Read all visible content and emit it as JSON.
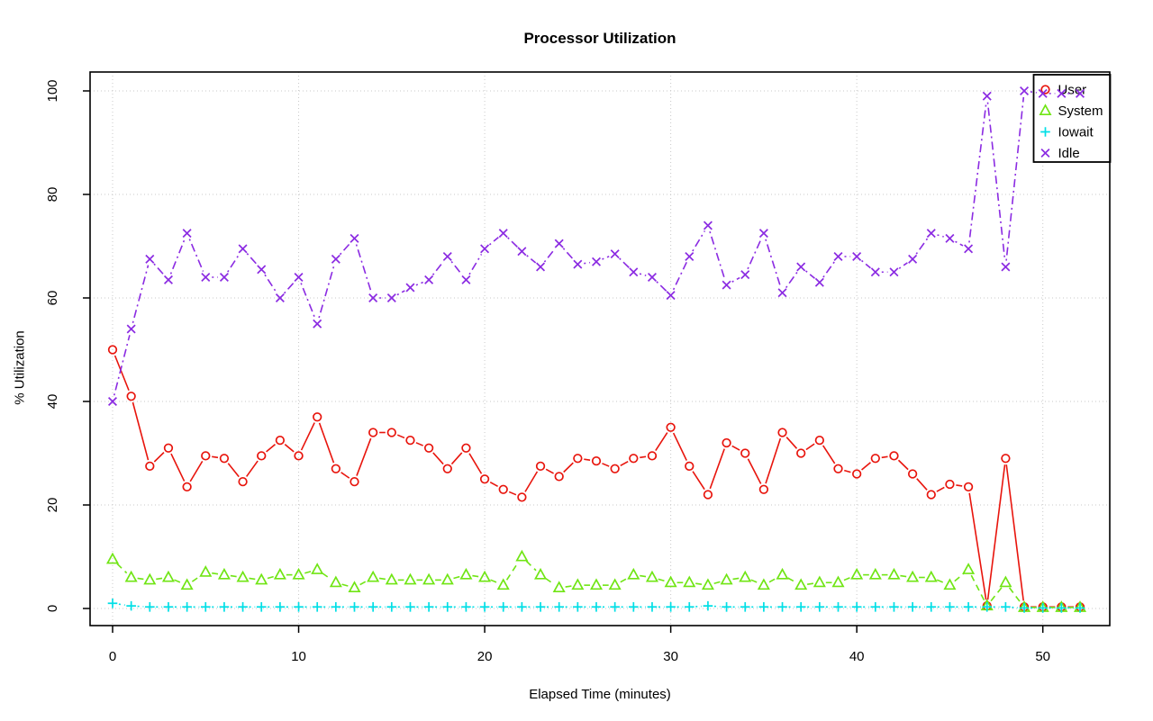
{
  "title": "Processor Utilization",
  "chart_data": {
    "type": "line",
    "title": "Processor Utilization",
    "xlabel": "Elapsed Time (minutes)",
    "ylabel": "% Utilization",
    "x": [
      0,
      1,
      2,
      3,
      4,
      5,
      6,
      7,
      8,
      9,
      10,
      11,
      12,
      13,
      14,
      15,
      16,
      17,
      18,
      19,
      20,
      21,
      22,
      23,
      24,
      25,
      26,
      27,
      28,
      29,
      30,
      31,
      32,
      33,
      34,
      35,
      36,
      37,
      38,
      39,
      40,
      41,
      42,
      43,
      44,
      45,
      46,
      47,
      48,
      49,
      50,
      51,
      52
    ],
    "xticks": [
      0,
      10,
      20,
      30,
      40,
      50
    ],
    "yticks": [
      0,
      20,
      40,
      60,
      80,
      100
    ],
    "xlim": [
      -1.2,
      53.6
    ],
    "ylim": [
      -3.3,
      103.7
    ],
    "grid": true,
    "grid_color": "#c9c9c9",
    "legend_position": "top-right",
    "series": [
      {
        "name": "User",
        "color": "#e8140c",
        "marker": "circle",
        "linestyle": "solid",
        "values": [
          50,
          41,
          27.5,
          31,
          23.5,
          29.5,
          29,
          24.5,
          29.5,
          32.5,
          29.5,
          37,
          27,
          24.5,
          34,
          34,
          32.5,
          31,
          27,
          31,
          25,
          23,
          21.5,
          27.5,
          25.5,
          29,
          28.5,
          27,
          29,
          29.5,
          35,
          27.5,
          22,
          32,
          30,
          23,
          34,
          30,
          32.5,
          27,
          26,
          29,
          29.5,
          26,
          22,
          24,
          23.5,
          0.5,
          29,
          0.3,
          0.3,
          0.3,
          0.3
        ]
      },
      {
        "name": "System",
        "color": "#70e514",
        "marker": "triangle",
        "linestyle": "dashed",
        "values": [
          9.5,
          6,
          5.5,
          6,
          4.5,
          7,
          6.5,
          6,
          5.5,
          6.5,
          6.5,
          7.5,
          5,
          4,
          6,
          5.5,
          5.5,
          5.5,
          5.5,
          6.5,
          6,
          4.5,
          10,
          6.5,
          4,
          4.5,
          4.5,
          4.5,
          6.5,
          6,
          5,
          5,
          4.5,
          5.5,
          6,
          4.5,
          6.5,
          4.5,
          5,
          5,
          6.5,
          6.5,
          6.5,
          6,
          6,
          4.5,
          7.5,
          0.5,
          5,
          0.2,
          0.2,
          0.2,
          0.2
        ]
      },
      {
        "name": "Iowait",
        "color": "#00dfe6",
        "marker": "plus",
        "linestyle": "dotted",
        "values": [
          1,
          0.5,
          0.3,
          0.3,
          0.3,
          0.3,
          0.3,
          0.3,
          0.3,
          0.3,
          0.3,
          0.3,
          0.3,
          0.3,
          0.3,
          0.3,
          0.3,
          0.3,
          0.3,
          0.3,
          0.3,
          0.3,
          0.3,
          0.3,
          0.3,
          0.3,
          0.3,
          0.3,
          0.3,
          0.3,
          0.3,
          0.3,
          0.5,
          0.3,
          0.3,
          0.3,
          0.3,
          0.3,
          0.3,
          0.3,
          0.3,
          0.3,
          0.3,
          0.3,
          0.3,
          0.3,
          0.3,
          0.3,
          0.3,
          0.1,
          0.1,
          0.1,
          0.1
        ]
      },
      {
        "name": "Idle",
        "color": "#8b2be2",
        "marker": "x",
        "linestyle": "dotdash",
        "values": [
          40,
          54,
          67.5,
          63.5,
          72.5,
          64,
          64,
          69.5,
          65.5,
          60,
          64,
          55,
          67.5,
          71.5,
          60,
          60,
          62,
          63.5,
          68,
          63.5,
          69.5,
          72.5,
          69,
          66,
          70.5,
          66.5,
          67,
          68.5,
          65,
          64,
          60.5,
          68,
          74,
          62.5,
          64.5,
          72.5,
          61,
          66,
          63,
          68,
          68,
          65,
          65,
          67.5,
          72.5,
          71.5,
          69.5,
          99,
          66,
          100,
          99.5,
          99.5,
          99.5
        ]
      }
    ]
  }
}
